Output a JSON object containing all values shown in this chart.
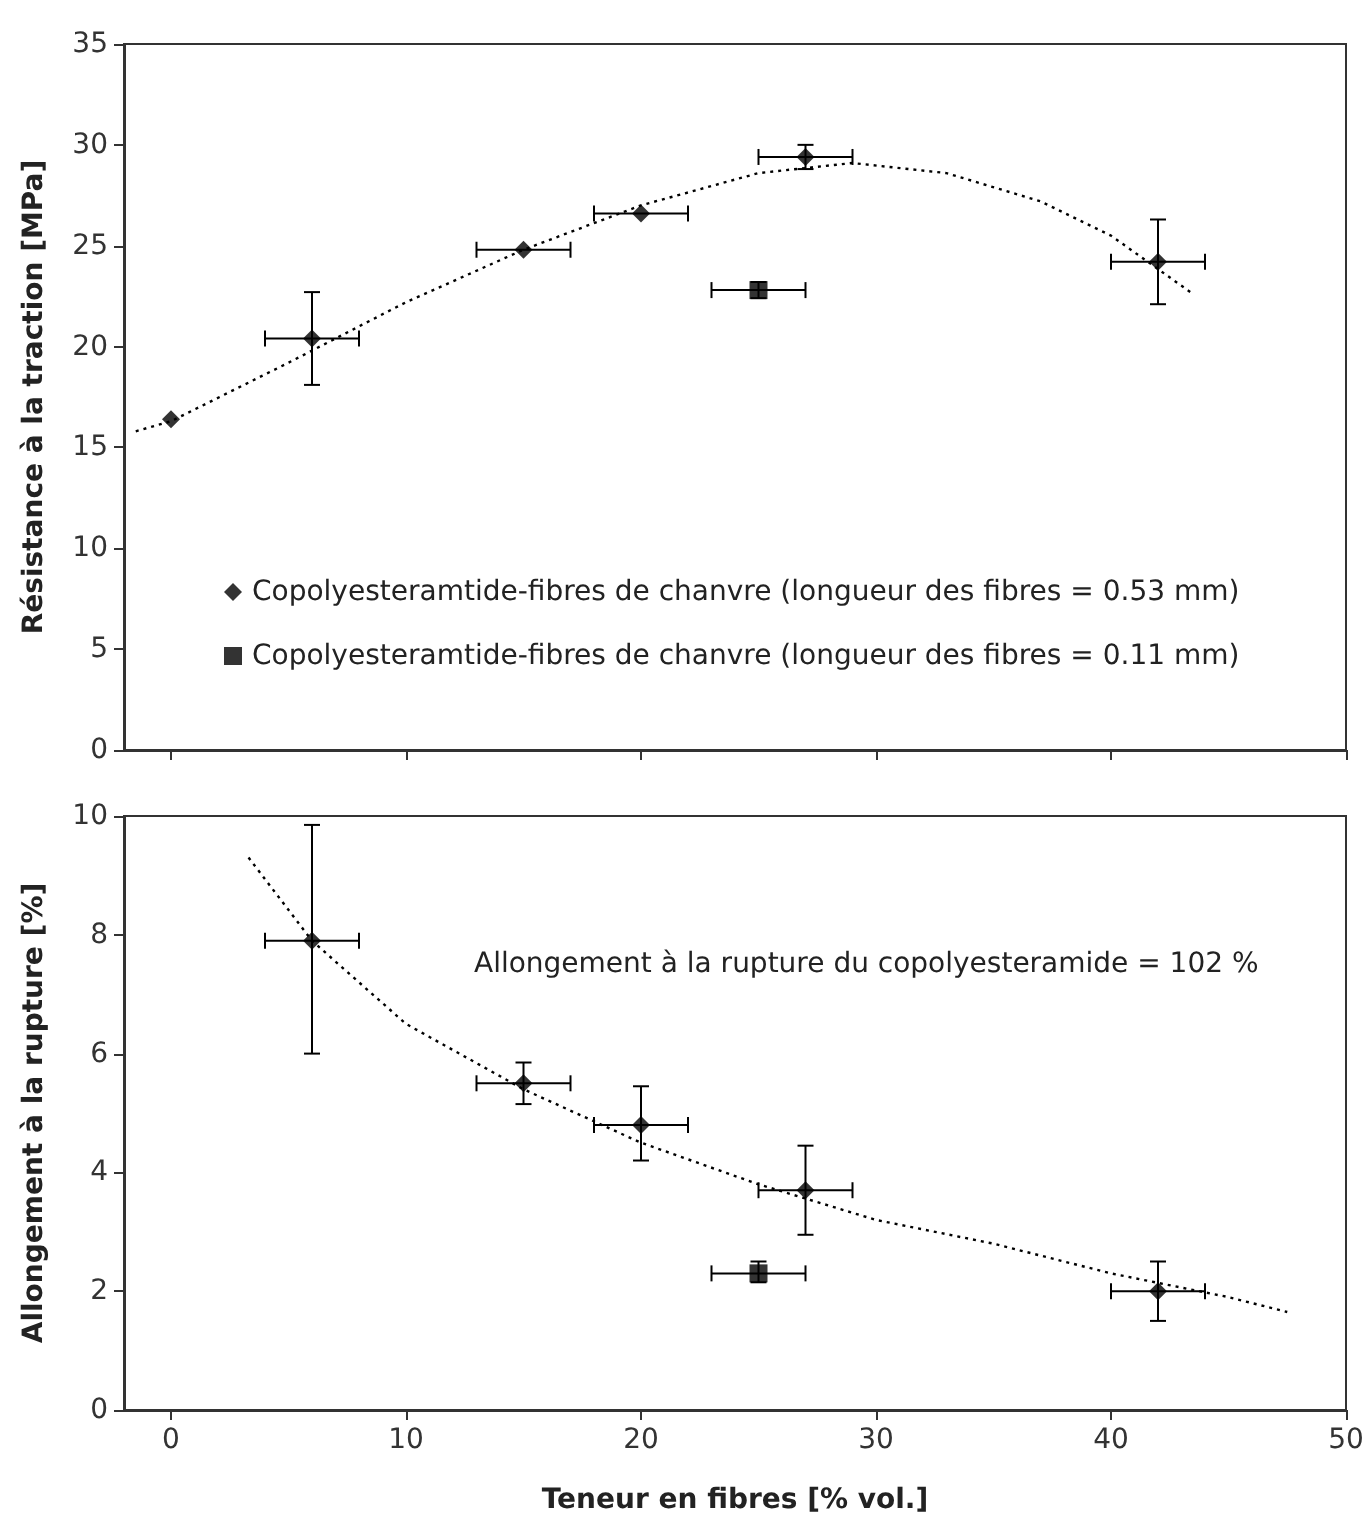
{
  "chart_data": [
    {
      "type": "scatter",
      "ylabel": "Résistance à la traction [MPa]",
      "xlim": [
        -2,
        50
      ],
      "xticks": [
        0,
        10,
        20,
        30,
        40,
        50
      ],
      "ylim": [
        0,
        35
      ],
      "yticks": [
        0,
        5,
        10,
        15,
        20,
        25,
        30,
        35
      ],
      "tick_labels": "y",
      "grid": false,
      "legend": "bottom left",
      "series": [
        {
          "name": "Copolyesteramtide-fibres de chanvre (longueur des fibres = 0.53 mm)",
          "color": "#000000",
          "marker": "diamond",
          "x": [
            0,
            6,
            15,
            20,
            27,
            42
          ],
          "values": [
            16.4,
            20.4,
            24.8,
            26.6,
            29.4,
            24.2
          ],
          "errors": [
            null,
            2.3,
            null,
            null,
            0.6,
            2.1
          ],
          "xerrors": [
            null,
            2,
            2,
            2,
            2,
            2
          ]
        },
        {
          "name": "Copolyesteramtide-fibres de chanvre (longueur des fibres = 0.11 mm)",
          "color": "#000000",
          "marker": "square",
          "x": [
            25
          ],
          "values": [
            22.8
          ],
          "errors": [
            0.4
          ],
          "xerrors": [
            2
          ]
        },
        {
          "type": "line",
          "color": "#000000",
          "marker": "none",
          "line_style": "dotted",
          "x": [
            -1.5,
            0,
            5,
            10,
            15,
            20,
            25,
            29,
            33,
            37,
            40,
            43.5
          ],
          "values": [
            15.8,
            16.3,
            19.2,
            22.2,
            24.8,
            27.0,
            28.6,
            29.1,
            28.6,
            27.2,
            25.5,
            22.6
          ]
        }
      ]
    },
    {
      "type": "scatter",
      "xlabel": "Teneur en fibres [% vol.]",
      "ylabel": "Allongement à la rupture [%]",
      "xlim": [
        -2,
        50
      ],
      "xticks": [
        0,
        10,
        20,
        30,
        40,
        50
      ],
      "ylim": [
        0,
        10
      ],
      "yticks": [
        0,
        2,
        4,
        6,
        8,
        10
      ],
      "grid": false,
      "legend": false,
      "annotations": [
        "Allongement à la rupture du copolyesteramide = 102 %"
      ],
      "series": [
        {
          "color": "#000000",
          "marker": "diamond",
          "x": [
            6,
            15,
            20,
            27,
            42
          ],
          "values": [
            7.9,
            5.5,
            4.8,
            3.7,
            2.0
          ],
          "errors": [
            [
              6.0,
              9.85
            ],
            [
              5.15,
              5.85
            ],
            [
              4.2,
              5.45
            ],
            [
              2.95,
              4.45
            ],
            [
              1.5,
              2.5
            ]
          ],
          "xerrors": [
            2,
            2,
            2,
            2,
            2
          ]
        },
        {
          "color": "#000000",
          "marker": "square",
          "x": [
            25
          ],
          "values": [
            2.3
          ],
          "errors": [
            [
              2.15,
              2.5
            ]
          ],
          "xerrors": [
            2
          ]
        },
        {
          "type": "line",
          "color": "#000000",
          "marker": "none",
          "line_style": "dotted",
          "x": [
            3.3,
            6,
            10,
            15,
            20,
            25,
            30,
            35,
            40,
            45,
            47.5
          ],
          "values": [
            9.3,
            7.9,
            6.5,
            5.4,
            4.5,
            3.8,
            3.2,
            2.8,
            2.3,
            1.9,
            1.65
          ]
        }
      ]
    }
  ]
}
